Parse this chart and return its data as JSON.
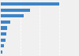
{
  "values": [
    75,
    38,
    30,
    12,
    8,
    7,
    6,
    4,
    2
  ],
  "bar_color": "#3d85c8",
  "background_color": "#f0f0f0",
  "xlim": [
    0,
    100
  ],
  "bar_height": 0.55,
  "figsize": [
    1.0,
    0.71
  ],
  "dpi": 100,
  "grid_lines": [
    25,
    50,
    75,
    100
  ]
}
